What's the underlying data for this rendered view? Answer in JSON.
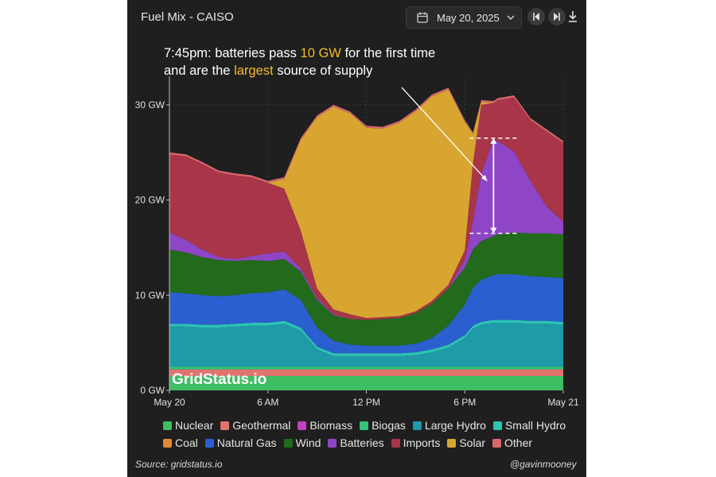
{
  "header": {
    "title": "Fuel Mix - CAISO",
    "date": "May 20, 2025",
    "icons": [
      "calendar-icon",
      "chevron-down-icon",
      "previous-day-icon",
      "next-day-icon",
      "download-icon"
    ]
  },
  "annotation": {
    "pre": "7:45pm: batteries pass ",
    "highlight1": "10 GW",
    "mid": " for the first time and are the ",
    "highlight2": "largest",
    "post": " source of supply",
    "highlight_color": "#f5b82e"
  },
  "watermark": "GridStatus.io",
  "source": "Source: gridstatus.io",
  "credit": "@gavinmooney",
  "legend": [
    {
      "name": "Nuclear",
      "color": "#3fbd63"
    },
    {
      "name": "Geothermal",
      "color": "#e0736e"
    },
    {
      "name": "Biomass",
      "color": "#c23fc0"
    },
    {
      "name": "Biogas",
      "color": "#33c27a"
    },
    {
      "name": "Large Hydro",
      "color": "#1f9aa8"
    },
    {
      "name": "Small Hydro",
      "color": "#2cc4b5"
    },
    {
      "name": "Coal",
      "color": "#e08a35"
    },
    {
      "name": "Natural Gas",
      "color": "#2b5fd0"
    },
    {
      "name": "Wind",
      "color": "#226b1c"
    },
    {
      "name": "Batteries",
      "color": "#8e45c6"
    },
    {
      "name": "Imports",
      "color": "#a83548"
    },
    {
      "name": "Solar",
      "color": "#d8a630"
    },
    {
      "name": "Other",
      "color": "#d9686e"
    }
  ],
  "chart_data": {
    "type": "area",
    "stacked": true,
    "ylim": [
      0,
      33
    ],
    "xlim": [
      0,
      24
    ],
    "y_ticks": [
      0,
      10,
      20,
      30
    ],
    "y_tick_labels": [
      "0 GW",
      "10 GW",
      "20 GW",
      "30 GW"
    ],
    "x_ticks": [
      0,
      6,
      12,
      18,
      24
    ],
    "x_tick_labels": [
      "May 20",
      "6 AM",
      "12 PM",
      "6 PM",
      "May 21"
    ],
    "x_unit": "hour of day",
    "annotation_range": {
      "x": 19.75,
      "y": [
        16.5,
        26.5
      ]
    },
    "x": [
      0,
      1,
      2,
      3,
      4,
      5,
      6,
      7,
      8,
      9,
      10,
      11,
      12,
      13,
      14,
      15,
      16,
      17,
      18,
      18.5,
      19,
      19.75,
      20,
      21,
      22,
      23,
      24
    ],
    "series": [
      {
        "name": "Nuclear",
        "values": [
          1.5,
          1.5,
          1.5,
          1.5,
          1.5,
          1.5,
          1.5,
          1.5,
          1.5,
          1.5,
          1.5,
          1.5,
          1.5,
          1.5,
          1.5,
          1.5,
          1.5,
          1.5,
          1.5,
          1.5,
          1.5,
          1.5,
          1.5,
          1.5,
          1.5,
          1.5,
          1.5
        ]
      },
      {
        "name": "Geothermal",
        "values": [
          0.7,
          0.7,
          0.7,
          0.7,
          0.7,
          0.7,
          0.7,
          0.7,
          0.7,
          0.7,
          0.7,
          0.7,
          0.7,
          0.7,
          0.7,
          0.7,
          0.7,
          0.7,
          0.7,
          0.7,
          0.7,
          0.7,
          0.7,
          0.7,
          0.7,
          0.7,
          0.7
        ]
      },
      {
        "name": "Biogas",
        "values": [
          0.3,
          0.3,
          0.3,
          0.3,
          0.3,
          0.3,
          0.3,
          0.3,
          0.3,
          0.3,
          0.3,
          0.3,
          0.3,
          0.3,
          0.3,
          0.3,
          0.3,
          0.3,
          0.3,
          0.3,
          0.3,
          0.3,
          0.3,
          0.3,
          0.3,
          0.3,
          0.3
        ]
      },
      {
        "name": "Large Hydro",
        "values": [
          4.2,
          4.2,
          4.1,
          4.1,
          4.2,
          4.3,
          4.3,
          4.5,
          3.8,
          1.8,
          1.1,
          1.1,
          1.1,
          1.1,
          1.1,
          1.2,
          1.5,
          2.0,
          3.0,
          4.0,
          4.4,
          4.6,
          4.6,
          4.6,
          4.5,
          4.5,
          4.4
        ]
      },
      {
        "name": "Small Hydro",
        "values": [
          0.3,
          0.3,
          0.3,
          0.3,
          0.3,
          0.3,
          0.3,
          0.3,
          0.3,
          0.3,
          0.3,
          0.3,
          0.3,
          0.3,
          0.3,
          0.3,
          0.3,
          0.3,
          0.3,
          0.3,
          0.3,
          0.3,
          0.3,
          0.3,
          0.3,
          0.3,
          0.3
        ]
      },
      {
        "name": "Natural Gas",
        "values": [
          3.3,
          3.2,
          3.1,
          3.0,
          3.0,
          3.1,
          3.2,
          3.3,
          2.9,
          2.0,
          1.3,
          0.9,
          0.8,
          0.8,
          0.8,
          0.9,
          1.2,
          2.0,
          3.2,
          4.0,
          4.4,
          4.7,
          4.8,
          4.8,
          4.7,
          4.6,
          4.6
        ]
      },
      {
        "name": "Wind",
        "values": [
          4.5,
          4.3,
          4.0,
          3.8,
          3.6,
          3.5,
          3.3,
          3.2,
          3.0,
          2.9,
          2.7,
          2.7,
          2.7,
          2.8,
          2.9,
          3.2,
          3.6,
          3.9,
          3.9,
          4.0,
          4.1,
          4.1,
          4.2,
          4.4,
          4.5,
          4.6,
          4.6
        ]
      },
      {
        "name": "Batteries",
        "values": [
          1.8,
          1.3,
          0.8,
          0.3,
          0.2,
          0.4,
          0.8,
          0.8,
          0.3,
          0.2,
          0.1,
          0.0,
          0.0,
          0.0,
          0.0,
          0.0,
          0.0,
          0.0,
          0.8,
          3.0,
          7.0,
          10.2,
          9.8,
          8.5,
          5.5,
          2.8,
          1.3
        ]
      },
      {
        "name": "Imports",
        "values": [
          8.2,
          8.8,
          9.0,
          8.9,
          8.8,
          8.3,
          7.4,
          6.6,
          4.0,
          1.0,
          0.5,
          0.5,
          0.2,
          0.2,
          0.2,
          0.2,
          0.3,
          0.4,
          1.0,
          6.1,
          7.3,
          3.8,
          4.3,
          5.7,
          6.4,
          7.9,
          8.3
        ]
      },
      {
        "name": "Solar",
        "values": [
          0.0,
          0.0,
          0.0,
          0.0,
          0.0,
          0.0,
          0.0,
          1.0,
          9.5,
          18.0,
          21.3,
          21.1,
          20.0,
          19.8,
          20.3,
          21.0,
          21.5,
          20.5,
          13.5,
          3.0,
          0.3,
          0.0,
          0.0,
          0.0,
          0.0,
          0.0,
          0.0
        ]
      },
      {
        "name": "Other",
        "values": [
          0.2,
          0.2,
          0.2,
          0.2,
          0.2,
          0.2,
          0.2,
          0.2,
          0.2,
          0.2,
          0.2,
          0.2,
          0.2,
          0.2,
          0.2,
          0.2,
          0.2,
          0.2,
          0.2,
          0.2,
          0.2,
          0.2,
          0.2,
          0.2,
          0.2,
          0.2,
          0.2
        ]
      }
    ]
  }
}
